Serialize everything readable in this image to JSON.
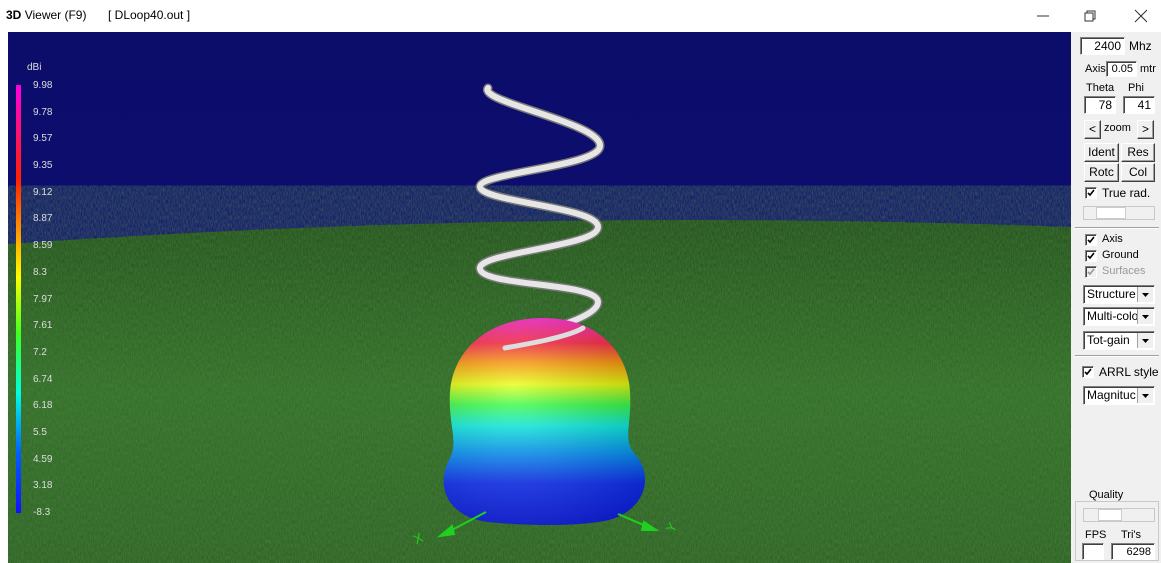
{
  "window": {
    "title_bold": "3D",
    "title": "Viewer (F9)",
    "file": "[ DLoop40.out ]"
  },
  "legend": {
    "unit": "dBi",
    "labels": [
      "9.98",
      "9.78",
      "9.57",
      "9.35",
      "9.12",
      "8.87",
      "8.59",
      "8.3",
      "7.97",
      "7.61",
      "7.2",
      "6.74",
      "6.18",
      "5.5",
      "4.59",
      "3.18",
      "-8.3"
    ]
  },
  "scene": {
    "axis_labels": [
      "X",
      "Y"
    ]
  },
  "panel": {
    "frequency": "2400",
    "frequency_unit": "Mhz",
    "axis_label": "Axis",
    "axis_value": "0.05",
    "axis_unit": "mtr",
    "theta_label": "Theta",
    "phi_label": "Phi",
    "theta": "78",
    "phi": "41",
    "zoom_out": "<",
    "zoom_label": "zoom",
    "zoom_in": ">",
    "buttons": [
      "Ident",
      "Res",
      "Rotc",
      "Col"
    ],
    "true_rad": "True rad.",
    "checkboxes": [
      "Axis",
      "Ground",
      "Surfaces"
    ],
    "selects": [
      "Structure",
      "Multi-colo",
      "Tot-gain"
    ],
    "arrl_style": "ARRL style",
    "magnitude": "Magnituc",
    "quality": "Quality",
    "fps_label": "FPS",
    "tris_label": "Tri's",
    "fps": "",
    "tris": "6298"
  }
}
